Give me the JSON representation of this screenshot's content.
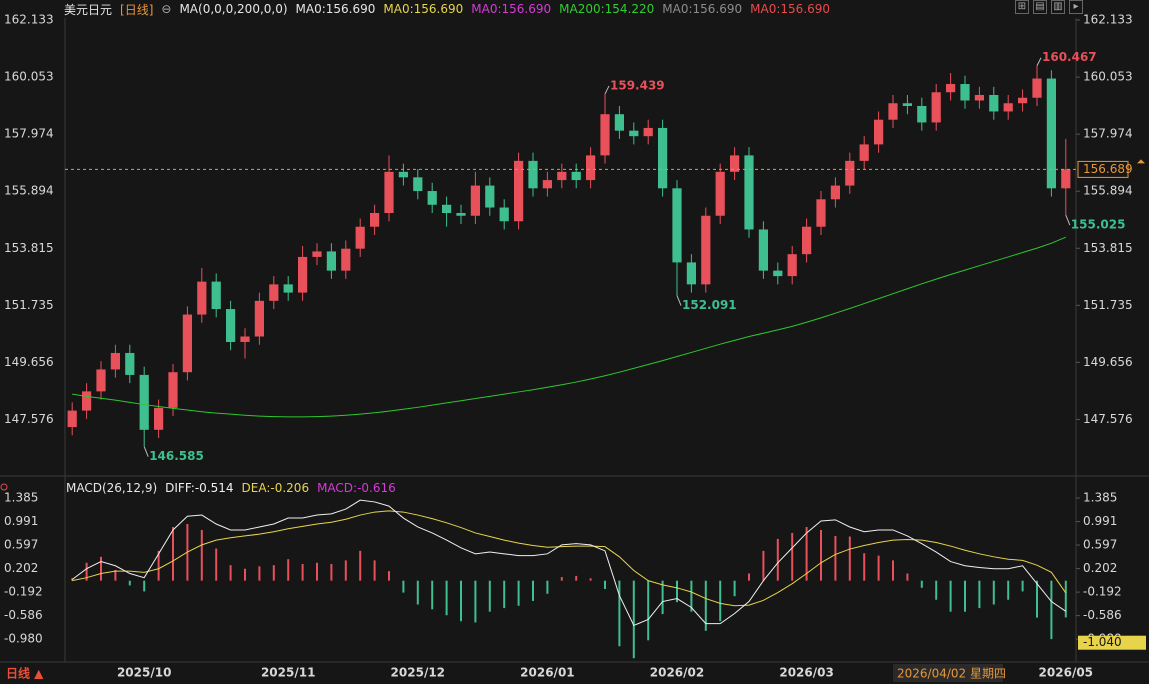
{
  "chart_data": {
    "type": "candlestick",
    "title": "美元日元",
    "period": "[日线]",
    "indicator": "MA(0,0,0,200,0,0)",
    "ma_legend": [
      {
        "text": "MA0:156.690",
        "color": "#e6e6e6"
      },
      {
        "text": "MA0:156.690",
        "color": "#e8d44a"
      },
      {
        "text": "MA0:156.690",
        "color": "#d63ad6"
      },
      {
        "text": "MA200:154.220",
        "color": "#33cc33"
      },
      {
        "text": "MA0:156.690",
        "color": "#8c8c8c"
      },
      {
        "text": "MA0:156.690",
        "color": "#e84a4a"
      }
    ],
    "up_color": "#e8505a",
    "down_color": "#3fbf8f",
    "ma200_color": "#2ec82e",
    "ylim": [
      146.1,
      162.133
    ],
    "yticks": [
      162.133,
      160.053,
      157.974,
      155.894,
      153.815,
      151.735,
      149.656,
      147.576
    ],
    "categories": [
      null,
      null,
      null,
      null,
      null,
      "2025/10",
      null,
      null,
      null,
      null,
      null,
      null,
      null,
      null,
      null,
      "2025/11",
      null,
      null,
      null,
      null,
      null,
      null,
      null,
      null,
      "2025/12",
      null,
      null,
      null,
      null,
      null,
      null,
      null,
      null,
      "2026/01",
      null,
      null,
      null,
      null,
      null,
      null,
      null,
      null,
      "2026/02",
      null,
      null,
      null,
      null,
      null,
      null,
      null,
      null,
      "2026/03",
      null,
      null,
      null,
      null,
      null,
      null,
      null,
      null,
      null,
      null,
      null,
      null,
      null,
      null,
      null,
      null,
      null,
      "2026/05"
    ],
    "open": [
      147.3,
      147.9,
      148.6,
      149.4,
      150.0,
      149.2,
      147.2,
      148.0,
      149.3,
      151.4,
      152.6,
      151.6,
      150.4,
      150.6,
      151.9,
      152.5,
      152.2,
      153.5,
      153.7,
      153.0,
      153.8,
      154.6,
      155.1,
      156.6,
      156.4,
      155.9,
      155.4,
      155.1,
      155.0,
      156.1,
      155.3,
      154.8,
      157.0,
      156.0,
      156.3,
      156.6,
      156.3,
      157.2,
      158.7,
      158.1,
      157.9,
      158.2,
      156.0,
      153.3,
      152.5,
      155.0,
      156.6,
      157.2,
      154.5,
      153.0,
      152.8,
      153.6,
      154.6,
      155.6,
      156.1,
      157.0,
      157.6,
      158.5,
      159.1,
      159.0,
      158.4,
      159.5,
      159.8,
      159.2,
      159.4,
      158.8,
      159.1,
      159.3,
      160.0,
      156.0
    ],
    "high": [
      148.2,
      148.9,
      149.7,
      150.3,
      150.3,
      149.5,
      148.3,
      149.6,
      151.7,
      153.1,
      152.9,
      151.9,
      150.9,
      152.2,
      152.8,
      152.8,
      153.9,
      154.0,
      154.0,
      154.1,
      154.9,
      155.4,
      157.2,
      156.9,
      156.7,
      156.2,
      155.7,
      155.4,
      156.6,
      156.4,
      155.6,
      157.3,
      157.3,
      156.6,
      156.9,
      156.9,
      157.5,
      159.439,
      159.0,
      158.4,
      158.5,
      158.5,
      156.3,
      153.6,
      155.3,
      156.9,
      157.5,
      157.5,
      154.8,
      153.3,
      153.9,
      154.9,
      155.9,
      156.4,
      157.3,
      157.9,
      158.8,
      159.4,
      159.4,
      159.3,
      159.8,
      160.2,
      160.1,
      159.7,
      159.7,
      159.4,
      159.6,
      160.467,
      160.3,
      157.8
    ],
    "low": [
      147.0,
      147.6,
      148.3,
      149.1,
      148.9,
      146.585,
      146.9,
      147.7,
      149.0,
      151.1,
      151.3,
      150.1,
      149.8,
      150.3,
      151.6,
      151.9,
      151.9,
      153.2,
      152.7,
      152.7,
      153.5,
      154.3,
      154.8,
      156.1,
      155.6,
      155.1,
      154.6,
      154.7,
      154.7,
      155.0,
      154.5,
      154.5,
      155.7,
      155.7,
      156.0,
      156.0,
      156.0,
      156.9,
      157.8,
      157.6,
      157.6,
      155.7,
      152.091,
      152.2,
      152.2,
      154.7,
      156.3,
      154.2,
      152.7,
      152.5,
      152.5,
      153.3,
      154.3,
      155.3,
      155.8,
      156.7,
      157.3,
      158.2,
      158.7,
      158.1,
      158.1,
      159.2,
      158.9,
      158.9,
      158.5,
      158.5,
      158.8,
      159.0,
      155.7,
      155.025
    ],
    "close": [
      147.9,
      148.6,
      149.4,
      150.0,
      149.2,
      147.2,
      148.0,
      149.3,
      151.4,
      152.6,
      151.6,
      150.4,
      150.6,
      151.9,
      152.5,
      152.2,
      153.5,
      153.7,
      153.0,
      153.8,
      154.6,
      155.1,
      156.6,
      156.4,
      155.9,
      155.4,
      155.1,
      155.0,
      156.1,
      155.3,
      154.8,
      157.0,
      156.0,
      156.3,
      156.6,
      156.3,
      157.2,
      158.7,
      158.1,
      157.9,
      158.2,
      156.0,
      153.3,
      152.5,
      155.0,
      156.6,
      157.2,
      154.5,
      153.0,
      152.8,
      153.6,
      154.6,
      155.6,
      156.1,
      157.0,
      157.6,
      158.5,
      159.1,
      159.0,
      158.4,
      159.5,
      159.8,
      159.2,
      159.4,
      158.8,
      159.1,
      159.3,
      160.0,
      156.0,
      156.689
    ],
    "ma200": [
      148.5,
      148.42,
      148.35,
      148.28,
      148.2,
      148.12,
      148.05,
      147.98,
      147.92,
      147.86,
      147.81,
      147.77,
      147.73,
      147.7,
      147.68,
      147.67,
      147.67,
      147.68,
      147.7,
      147.73,
      147.77,
      147.82,
      147.88,
      147.95,
      148.02,
      148.1,
      148.18,
      148.26,
      148.34,
      148.42,
      148.5,
      148.58,
      148.66,
      148.75,
      148.84,
      148.94,
      149.05,
      149.17,
      149.3,
      149.44,
      149.58,
      149.72,
      149.87,
      150.02,
      150.17,
      150.32,
      150.46,
      150.6,
      150.72,
      150.84,
      150.97,
      151.12,
      151.28,
      151.45,
      151.62,
      151.8,
      151.98,
      152.16,
      152.34,
      152.52,
      152.69,
      152.86,
      153.02,
      153.18,
      153.34,
      153.5,
      153.66,
      153.82,
      154.0,
      154.22
    ],
    "crosshair_label": "2026/04/02 星期四",
    "period_button": "日线 ▲",
    "macd": {
      "type": "macd",
      "label": "MACD(26,12,9)",
      "diff_label": "DIFF:-0.514",
      "dea_label": "DEA:-0.206",
      "macd_label": "MACD:-0.616",
      "diff_color": "#f0f0f0",
      "dea_color": "#e8d44a",
      "label_color": "#d63ad6",
      "ylim": [
        -1.33,
        1.52
      ],
      "yticks": [
        1.385,
        0.991,
        0.597,
        0.202,
        -0.192,
        -0.586,
        {
          "value": -0.98,
          "label": "-0.980"
        }
      ],
      "cursor": {
        "value": -1.04,
        "label": "-1.040"
      },
      "diff": [
        0.02,
        0.2,
        0.32,
        0.25,
        0.12,
        0.05,
        0.45,
        0.85,
        1.08,
        1.1,
        0.95,
        0.85,
        0.85,
        0.9,
        0.95,
        1.05,
        1.05,
        1.1,
        1.12,
        1.2,
        1.35,
        1.32,
        1.25,
        1.05,
        0.9,
        0.8,
        0.68,
        0.55,
        0.45,
        0.48,
        0.45,
        0.42,
        0.42,
        0.45,
        0.6,
        0.62,
        0.6,
        0.5,
        -0.25,
        -0.75,
        -0.65,
        -0.35,
        -0.3,
        -0.45,
        -0.72,
        -0.72,
        -0.55,
        -0.35,
        0.0,
        0.3,
        0.55,
        0.8,
        1.0,
        1.02,
        0.9,
        0.82,
        0.85,
        0.85,
        0.75,
        0.62,
        0.48,
        0.32,
        0.25,
        0.22,
        0.2,
        0.2,
        0.25,
        -0.05,
        -0.35,
        -0.514
      ],
      "dea": [
        0.0,
        0.05,
        0.12,
        0.16,
        0.16,
        0.14,
        0.2,
        0.33,
        0.48,
        0.6,
        0.68,
        0.72,
        0.75,
        0.78,
        0.82,
        0.87,
        0.91,
        0.95,
        0.98,
        1.03,
        1.1,
        1.15,
        1.17,
        1.15,
        1.1,
        1.04,
        0.97,
        0.89,
        0.8,
        0.74,
        0.68,
        0.63,
        0.59,
        0.56,
        0.57,
        0.58,
        0.58,
        0.57,
        0.4,
        0.17,
        0.0,
        -0.07,
        -0.12,
        -0.19,
        -0.3,
        -0.38,
        -0.42,
        -0.41,
        -0.33,
        -0.2,
        -0.05,
        0.12,
        0.3,
        0.44,
        0.53,
        0.59,
        0.64,
        0.68,
        0.69,
        0.68,
        0.64,
        0.58,
        0.51,
        0.45,
        0.4,
        0.36,
        0.34,
        0.26,
        0.14,
        -0.206
      ],
      "hist": [
        0.04,
        0.3,
        0.4,
        0.18,
        -0.08,
        -0.18,
        0.5,
        0.9,
        0.95,
        0.85,
        0.54,
        0.26,
        0.2,
        0.24,
        0.26,
        0.36,
        0.28,
        0.3,
        0.28,
        0.34,
        0.5,
        0.34,
        0.16,
        -0.2,
        -0.4,
        -0.48,
        -0.58,
        -0.68,
        -0.7,
        -0.52,
        -0.46,
        -0.42,
        -0.34,
        -0.22,
        0.06,
        0.08,
        0.04,
        -0.14,
        -1.1,
        -1.3,
        -1.0,
        -0.56,
        -0.36,
        -0.52,
        -0.84,
        -0.68,
        -0.26,
        0.12,
        0.5,
        0.7,
        0.8,
        0.9,
        0.85,
        0.75,
        0.74,
        0.46,
        0.42,
        0.34,
        0.12,
        -0.12,
        -0.32,
        -0.52,
        -0.52,
        -0.46,
        -0.4,
        -0.32,
        -0.18,
        -0.62,
        -0.98,
        -0.616
      ]
    }
  }
}
